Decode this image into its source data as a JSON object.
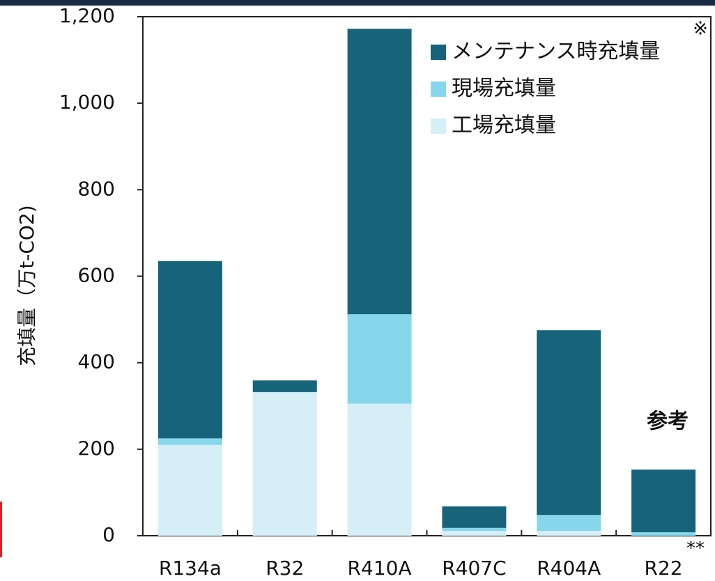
{
  "chart_data": {
    "type": "stacked_bar",
    "y_label": "充填量（万t-CO2)",
    "categories": [
      "R134a",
      "R32",
      "R410A",
      "R407C",
      "R404A",
      "R22"
    ],
    "series": [
      {
        "name": "工場充填量",
        "color": "#d6eff7",
        "values": [
          210,
          332,
          305,
          11,
          11,
          0
        ]
      },
      {
        "name": "現場充填量",
        "color": "#87d7ec",
        "values": [
          15,
          0,
          207,
          7,
          37,
          8
        ]
      },
      {
        "name": "メンテナンス時充填量",
        "color": "#17647a",
        "values": [
          410,
          27,
          660,
          50,
          427,
          145
        ]
      }
    ],
    "ylim": [
      0,
      1200
    ],
    "yticks": [
      0,
      200,
      400,
      600,
      800,
      {
        "value": 1000,
        "label": "1,000"
      },
      {
        "value": 1200,
        "label": "1,200"
      }
    ],
    "annotations": {
      "note_mark": "※",
      "reference": "参考",
      "r22_mark": "**"
    }
  }
}
